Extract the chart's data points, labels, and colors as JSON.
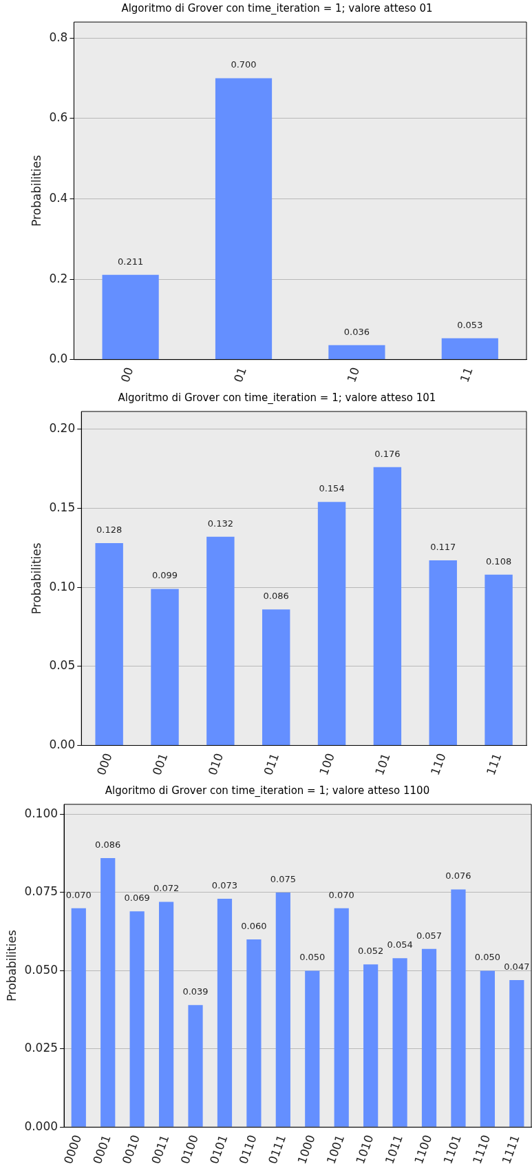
{
  "chart_data": [
    {
      "type": "bar",
      "title": "Algoritmo di Grover con time_iteration = 1; valore atteso 01",
      "ylabel": "Probabilities",
      "categories": [
        "00",
        "01",
        "10",
        "11"
      ],
      "values": [
        0.211,
        0.7,
        0.036,
        0.053
      ],
      "value_labels": [
        "0.211",
        "0.700",
        "0.036",
        "0.053"
      ],
      "color": "#648fff",
      "ylim": [
        0,
        0.84
      ],
      "yticks": [
        {
          "value": 0,
          "label": "0.0"
        },
        {
          "value": 0.2,
          "label": "0.2"
        },
        {
          "value": 0.4,
          "label": "0.4"
        },
        {
          "value": 0.6,
          "label": "0.6"
        },
        {
          "value": 0.8,
          "label": "0.8"
        }
      ],
      "grid": "y"
    },
    {
      "type": "bar",
      "title": "Algoritmo di Grover con time_iteration = 1; valore atteso 101",
      "ylabel": "Probabilities",
      "categories": [
        "000",
        "001",
        "010",
        "011",
        "100",
        "101",
        "110",
        "111"
      ],
      "values": [
        0.128,
        0.099,
        0.132,
        0.086,
        0.154,
        0.176,
        0.117,
        0.108
      ],
      "value_labels": [
        "0.128",
        "0.099",
        "0.132",
        "0.086",
        "0.154",
        "0.176",
        "0.117",
        "0.108"
      ],
      "color": "#648fff",
      "ylim": [
        0,
        0.2112
      ],
      "yticks": [
        {
          "value": 0,
          "label": "0.00"
        },
        {
          "value": 0.05,
          "label": "0.05"
        },
        {
          "value": 0.1,
          "label": "0.10"
        },
        {
          "value": 0.15,
          "label": "0.15"
        },
        {
          "value": 0.2,
          "label": "0.20"
        }
      ],
      "grid": "y"
    },
    {
      "type": "bar",
      "title": "Algoritmo di Grover con time_iteration = 1; valore atteso 1100",
      "ylabel": "Probabilities",
      "categories": [
        "0000",
        "0001",
        "0010",
        "0011",
        "0100",
        "0101",
        "0110",
        "0111",
        "1000",
        "1001",
        "1010",
        "1011",
        "1100",
        "1101",
        "1110",
        "1111"
      ],
      "values": [
        0.07,
        0.086,
        0.069,
        0.072,
        0.039,
        0.073,
        0.06,
        0.075,
        0.05,
        0.07,
        0.052,
        0.054,
        0.057,
        0.076,
        0.05,
        0.047
      ],
      "value_labels": [
        "0.070",
        "0.086",
        "0.069",
        "0.072",
        "0.039",
        "0.073",
        "0.060",
        "0.075",
        "0.050",
        "0.070",
        "0.052",
        "0.054",
        "0.057",
        "0.076",
        "0.050",
        "0.047"
      ],
      "color": "#648fff",
      "ylim": [
        0,
        0.1032
      ],
      "yticks": [
        {
          "value": 0,
          "label": "0.000"
        },
        {
          "value": 0.025,
          "label": "0.025"
        },
        {
          "value": 0.05,
          "label": "0.050"
        },
        {
          "value": 0.075,
          "label": "0.075"
        },
        {
          "value": 0.1,
          "label": "0.100"
        }
      ],
      "grid": "y"
    }
  ]
}
